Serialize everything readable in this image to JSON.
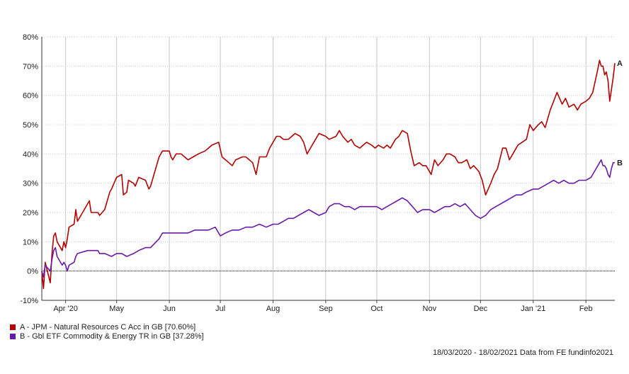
{
  "chart_data": {
    "type": "line",
    "ylim": [
      -10,
      80
    ],
    "y_ticks": [
      -10,
      0,
      10,
      20,
      30,
      40,
      50,
      60,
      70,
      80
    ],
    "y_tick_labels": [
      "-10%",
      "0%",
      "10%",
      "20%",
      "30%",
      "40%",
      "50%",
      "60%",
      "70%",
      "80%"
    ],
    "x_ticks": [
      {
        "date": "2020-04-01",
        "label": "Apr '20"
      },
      {
        "date": "2020-05-01",
        "label": "May"
      },
      {
        "date": "2020-06-01",
        "label": "Jun"
      },
      {
        "date": "2020-07-01",
        "label": "Jul"
      },
      {
        "date": "2020-08-01",
        "label": "Aug"
      },
      {
        "date": "2020-09-01",
        "label": "Sep"
      },
      {
        "date": "2020-10-01",
        "label": "Oct"
      },
      {
        "date": "2020-11-01",
        "label": "Nov"
      },
      {
        "date": "2020-12-01",
        "label": "Dec"
      },
      {
        "date": "2021-01-01",
        "label": "Jan '21"
      },
      {
        "date": "2021-02-01",
        "label": "Feb"
      }
    ],
    "date_range": [
      "2020-03-18",
      "2021-02-18"
    ],
    "grid": true,
    "zero_line": true,
    "series": [
      {
        "name": "A - JPM - Natural Resources C Acc in GB [70.60%]",
        "end_label": "A",
        "color": "#b30000",
        "points": [
          [
            "2020-03-18",
            0
          ],
          [
            "2020-03-19",
            -6
          ],
          [
            "2020-03-20",
            3
          ],
          [
            "2020-03-23",
            -4
          ],
          [
            "2020-03-24",
            6
          ],
          [
            "2020-03-25",
            12
          ],
          [
            "2020-03-26",
            13
          ],
          [
            "2020-03-27",
            10
          ],
          [
            "2020-03-30",
            7
          ],
          [
            "2020-03-31",
            10
          ],
          [
            "2020-04-01",
            8
          ],
          [
            "2020-04-02",
            11
          ],
          [
            "2020-04-03",
            15
          ],
          [
            "2020-04-06",
            16
          ],
          [
            "2020-04-07",
            21
          ],
          [
            "2020-04-08",
            17
          ],
          [
            "2020-04-14",
            23
          ],
          [
            "2020-04-15",
            24
          ],
          [
            "2020-04-16",
            20
          ],
          [
            "2020-04-20",
            20
          ],
          [
            "2020-04-21",
            19
          ],
          [
            "2020-04-24",
            21
          ],
          [
            "2020-04-27",
            27
          ],
          [
            "2020-04-28",
            28
          ],
          [
            "2020-05-01",
            32
          ],
          [
            "2020-05-04",
            33
          ],
          [
            "2020-05-05",
            26
          ],
          [
            "2020-05-07",
            27
          ],
          [
            "2020-05-08",
            31
          ],
          [
            "2020-05-11",
            30
          ],
          [
            "2020-05-12",
            29
          ],
          [
            "2020-05-14",
            32
          ],
          [
            "2020-05-18",
            31
          ],
          [
            "2020-05-20",
            28
          ],
          [
            "2020-05-21",
            29
          ],
          [
            "2020-05-26",
            39
          ],
          [
            "2020-05-28",
            41
          ],
          [
            "2020-06-01",
            41
          ],
          [
            "2020-06-02",
            39
          ],
          [
            "2020-06-03",
            38
          ],
          [
            "2020-06-05",
            40
          ],
          [
            "2020-06-08",
            40
          ],
          [
            "2020-06-10",
            39
          ],
          [
            "2020-06-12",
            38
          ],
          [
            "2020-06-15",
            39
          ],
          [
            "2020-06-18",
            40
          ],
          [
            "2020-06-22",
            41
          ],
          [
            "2020-06-24",
            42
          ],
          [
            "2020-06-26",
            43
          ],
          [
            "2020-06-30",
            44
          ],
          [
            "2020-07-02",
            39
          ],
          [
            "2020-07-06",
            37
          ],
          [
            "2020-07-08",
            36
          ],
          [
            "2020-07-10",
            38
          ],
          [
            "2020-07-14",
            39
          ],
          [
            "2020-07-16",
            39
          ],
          [
            "2020-07-20",
            37
          ],
          [
            "2020-07-22",
            33
          ],
          [
            "2020-07-24",
            39
          ],
          [
            "2020-07-28",
            39
          ],
          [
            "2020-07-30",
            42
          ],
          [
            "2020-08-03",
            46
          ],
          [
            "2020-08-05",
            46
          ],
          [
            "2020-08-07",
            45
          ],
          [
            "2020-08-10",
            45
          ],
          [
            "2020-08-12",
            46
          ],
          [
            "2020-08-14",
            47
          ],
          [
            "2020-08-17",
            46
          ],
          [
            "2020-08-19",
            44
          ],
          [
            "2020-08-21",
            40
          ],
          [
            "2020-08-24",
            43
          ],
          [
            "2020-08-26",
            45
          ],
          [
            "2020-08-28",
            47
          ],
          [
            "2020-09-01",
            46
          ],
          [
            "2020-09-03",
            45
          ],
          [
            "2020-09-07",
            46
          ],
          [
            "2020-09-09",
            48
          ],
          [
            "2020-09-11",
            46
          ],
          [
            "2020-09-14",
            44
          ],
          [
            "2020-09-16",
            45
          ],
          [
            "2020-09-18",
            43
          ],
          [
            "2020-09-21",
            42
          ],
          [
            "2020-09-23",
            43
          ],
          [
            "2020-09-25",
            44
          ],
          [
            "2020-09-28",
            43
          ],
          [
            "2020-09-30",
            42
          ],
          [
            "2020-10-02",
            43
          ],
          [
            "2020-10-05",
            42
          ],
          [
            "2020-10-07",
            43
          ],
          [
            "2020-10-09",
            42
          ],
          [
            "2020-10-12",
            45
          ],
          [
            "2020-10-14",
            46
          ],
          [
            "2020-10-16",
            48
          ],
          [
            "2020-10-19",
            47
          ],
          [
            "2020-10-21",
            41
          ],
          [
            "2020-10-23",
            36
          ],
          [
            "2020-10-26",
            37
          ],
          [
            "2020-10-28",
            36
          ],
          [
            "2020-10-30",
            36
          ],
          [
            "2020-11-02",
            33
          ],
          [
            "2020-11-04",
            38
          ],
          [
            "2020-11-06",
            36
          ],
          [
            "2020-11-09",
            38
          ],
          [
            "2020-11-11",
            40
          ],
          [
            "2020-11-13",
            40
          ],
          [
            "2020-11-16",
            39
          ],
          [
            "2020-11-18",
            37
          ],
          [
            "2020-11-20",
            37
          ],
          [
            "2020-11-23",
            38
          ],
          [
            "2020-11-25",
            35
          ],
          [
            "2020-11-27",
            36
          ],
          [
            "2020-11-30",
            34
          ],
          [
            "2020-12-02",
            31
          ],
          [
            "2020-12-04",
            26
          ],
          [
            "2020-12-07",
            30
          ],
          [
            "2020-12-09",
            33
          ],
          [
            "2020-12-11",
            35
          ],
          [
            "2020-12-14",
            42
          ],
          [
            "2020-12-16",
            42
          ],
          [
            "2020-12-18",
            38
          ],
          [
            "2020-12-21",
            41
          ],
          [
            "2020-12-23",
            43
          ],
          [
            "2020-12-28",
            45
          ],
          [
            "2020-12-30",
            50
          ],
          [
            "2021-01-01",
            48
          ],
          [
            "2021-01-04",
            50
          ],
          [
            "2021-01-06",
            51
          ],
          [
            "2021-01-08",
            49
          ],
          [
            "2021-01-11",
            55
          ],
          [
            "2021-01-13",
            58
          ],
          [
            "2021-01-15",
            61
          ],
          [
            "2021-01-18",
            57
          ],
          [
            "2021-01-20",
            59
          ],
          [
            "2021-01-22",
            56
          ],
          [
            "2021-01-25",
            57
          ],
          [
            "2021-01-27",
            55
          ],
          [
            "2021-01-29",
            57
          ],
          [
            "2021-02-01",
            58
          ],
          [
            "2021-02-03",
            59
          ],
          [
            "2021-02-05",
            61
          ],
          [
            "2021-02-08",
            69
          ],
          [
            "2021-02-09",
            72
          ],
          [
            "2021-02-10",
            70
          ],
          [
            "2021-02-11",
            70
          ],
          [
            "2021-02-12",
            67
          ],
          [
            "2021-02-13",
            68
          ],
          [
            "2021-02-14",
            65
          ],
          [
            "2021-02-15",
            58
          ],
          [
            "2021-02-16",
            62
          ],
          [
            "2021-02-17",
            66
          ],
          [
            "2021-02-18",
            71
          ]
        ]
      },
      {
        "name": "B - Gbl ETF Commodity & Energy TR in GB [37.28%]",
        "end_label": "B",
        "color": "#6a1aa8",
        "points": [
          [
            "2020-03-18",
            0
          ],
          [
            "2020-03-19",
            -2
          ],
          [
            "2020-03-20",
            2
          ],
          [
            "2020-03-23",
            0
          ],
          [
            "2020-03-24",
            4
          ],
          [
            "2020-03-25",
            7
          ],
          [
            "2020-03-26",
            8
          ],
          [
            "2020-03-27",
            5
          ],
          [
            "2020-03-30",
            2
          ],
          [
            "2020-03-31",
            3
          ],
          [
            "2020-04-01",
            2
          ],
          [
            "2020-04-02",
            0
          ],
          [
            "2020-04-03",
            2
          ],
          [
            "2020-04-06",
            3
          ],
          [
            "2020-04-07",
            5
          ],
          [
            "2020-04-08",
            6
          ],
          [
            "2020-04-14",
            7
          ],
          [
            "2020-04-20",
            7
          ],
          [
            "2020-04-21",
            6
          ],
          [
            "2020-04-24",
            6
          ],
          [
            "2020-04-28",
            5
          ],
          [
            "2020-05-01",
            6
          ],
          [
            "2020-05-04",
            6
          ],
          [
            "2020-05-07",
            5
          ],
          [
            "2020-05-11",
            6
          ],
          [
            "2020-05-14",
            7
          ],
          [
            "2020-05-18",
            8
          ],
          [
            "2020-05-21",
            8
          ],
          [
            "2020-05-26",
            11
          ],
          [
            "2020-05-28",
            13
          ],
          [
            "2020-06-01",
            13
          ],
          [
            "2020-06-04",
            13
          ],
          [
            "2020-06-08",
            13
          ],
          [
            "2020-06-12",
            13
          ],
          [
            "2020-06-16",
            14
          ],
          [
            "2020-06-20",
            14
          ],
          [
            "2020-06-24",
            14
          ],
          [
            "2020-06-28",
            15
          ],
          [
            "2020-07-01",
            12
          ],
          [
            "2020-07-04",
            13
          ],
          [
            "2020-07-08",
            14
          ],
          [
            "2020-07-12",
            14
          ],
          [
            "2020-07-16",
            15
          ],
          [
            "2020-07-20",
            15
          ],
          [
            "2020-07-24",
            16
          ],
          [
            "2020-07-28",
            15
          ],
          [
            "2020-08-01",
            16
          ],
          [
            "2020-08-04",
            16
          ],
          [
            "2020-08-07",
            17
          ],
          [
            "2020-08-10",
            18
          ],
          [
            "2020-08-13",
            18
          ],
          [
            "2020-08-16",
            19
          ],
          [
            "2020-08-19",
            20
          ],
          [
            "2020-08-22",
            21
          ],
          [
            "2020-08-25",
            20
          ],
          [
            "2020-08-28",
            19
          ],
          [
            "2020-09-01",
            20
          ],
          [
            "2020-09-03",
            22
          ],
          [
            "2020-09-06",
            23
          ],
          [
            "2020-09-09",
            23
          ],
          [
            "2020-09-12",
            22
          ],
          [
            "2020-09-15",
            22
          ],
          [
            "2020-09-18",
            21
          ],
          [
            "2020-09-21",
            22
          ],
          [
            "2020-09-24",
            22
          ],
          [
            "2020-09-27",
            22
          ],
          [
            "2020-10-01",
            22
          ],
          [
            "2020-10-04",
            21
          ],
          [
            "2020-10-07",
            22
          ],
          [
            "2020-10-10",
            23
          ],
          [
            "2020-10-13",
            24
          ],
          [
            "2020-10-16",
            25
          ],
          [
            "2020-10-19",
            24
          ],
          [
            "2020-10-22",
            22
          ],
          [
            "2020-10-25",
            20
          ],
          [
            "2020-10-28",
            21
          ],
          [
            "2020-11-01",
            21
          ],
          [
            "2020-11-04",
            20
          ],
          [
            "2020-11-07",
            21
          ],
          [
            "2020-11-10",
            22
          ],
          [
            "2020-11-13",
            22
          ],
          [
            "2020-11-16",
            23
          ],
          [
            "2020-11-19",
            22
          ],
          [
            "2020-11-22",
            23
          ],
          [
            "2020-11-25",
            21
          ],
          [
            "2020-11-28",
            19
          ],
          [
            "2020-12-01",
            18
          ],
          [
            "2020-12-04",
            19
          ],
          [
            "2020-12-07",
            21
          ],
          [
            "2020-12-10",
            22
          ],
          [
            "2020-12-13",
            23
          ],
          [
            "2020-12-16",
            24
          ],
          [
            "2020-12-19",
            25
          ],
          [
            "2020-12-22",
            26
          ],
          [
            "2020-12-25",
            26
          ],
          [
            "2020-12-28",
            27
          ],
          [
            "2021-01-01",
            28
          ],
          [
            "2021-01-04",
            28
          ],
          [
            "2021-01-07",
            29
          ],
          [
            "2021-01-10",
            30
          ],
          [
            "2021-01-13",
            31
          ],
          [
            "2021-01-16",
            30
          ],
          [
            "2021-01-19",
            31
          ],
          [
            "2021-01-22",
            30
          ],
          [
            "2021-01-25",
            30
          ],
          [
            "2021-01-28",
            31
          ],
          [
            "2021-02-01",
            31
          ],
          [
            "2021-02-04",
            32
          ],
          [
            "2021-02-07",
            35
          ],
          [
            "2021-02-09",
            37
          ],
          [
            "2021-02-10",
            38
          ],
          [
            "2021-02-11",
            36
          ],
          [
            "2021-02-12",
            36
          ],
          [
            "2021-02-13",
            35
          ],
          [
            "2021-02-14",
            33
          ],
          [
            "2021-02-15",
            32
          ],
          [
            "2021-02-16",
            35
          ],
          [
            "2021-02-17",
            37
          ],
          [
            "2021-02-18",
            37
          ]
        ]
      }
    ]
  },
  "legend": {
    "items": [
      {
        "label": "A - JPM - Natural Resources C Acc in GB [70.60%]",
        "color": "#b30000"
      },
      {
        "label": "B - Gbl ETF Commodity & Energy TR in GB [37.28%]",
        "color": "#6a1aa8"
      }
    ]
  },
  "footer": {
    "text": "18/03/2020 - 18/02/2021 Data from FE fundinfo2021"
  }
}
